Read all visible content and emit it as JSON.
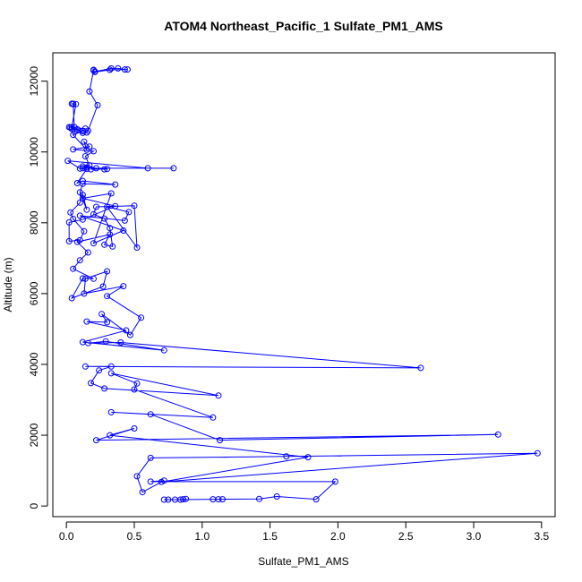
{
  "colors": {
    "series": "#0000ff",
    "axis": "#000000",
    "background": "#ffffff"
  },
  "chart_data": {
    "type": "line",
    "marker": "open-circle",
    "title": "ATOM4 Northeast_Pacific_1 Sulfate_PM1_AMS",
    "xlabel": "Sulfate_PM1_AMS",
    "ylabel": "Altitude (m)",
    "xlim": [
      -0.1,
      3.6
    ],
    "ylim": [
      -300,
      12800
    ],
    "xticks": [
      0,
      0.5,
      1,
      1.5,
      2,
      2.5,
      3,
      3.5
    ],
    "xtick_labels": [
      "0.0",
      "0.5",
      "1.0",
      "1.5",
      "2.0",
      "2.5",
      "3.0",
      "3.5"
    ],
    "yticks": [
      0,
      2000,
      4000,
      6000,
      8000,
      10000,
      12000
    ],
    "ytick_labels": [
      "0",
      "2000",
      "4000",
      "6000",
      "8000",
      "10000",
      "12000"
    ],
    "grid": false,
    "legend": "none",
    "series": [
      {
        "x": [
          0.72,
          0.75,
          0.8,
          0.86,
          0.88,
          0.84,
          1.08,
          1.12,
          1.15,
          1.42,
          1.55,
          1.84,
          1.98,
          0.62,
          0.72,
          0.56,
          0.52,
          0.62,
          1.62,
          3.47,
          0.7,
          1.78,
          0.32,
          0.5,
          0.22,
          3.18,
          1.13,
          0.62,
          0.33,
          1.08,
          0.5,
          0.52,
          0.33,
          1.12,
          0.28,
          0.18,
          0.24,
          0.33,
          0.14,
          2.61,
          0.4,
          0.16,
          0.29,
          0.72,
          0.12,
          0.44,
          0.15,
          0.3,
          0.26,
          0.47,
          0.55,
          0.3,
          0.42,
          0.13,
          0.14,
          0.3,
          0.27,
          0.04,
          0.12,
          0.2,
          0.05,
          0.1,
          0.16,
          0.08,
          0.32,
          0.28,
          0.34,
          0.32,
          0.28,
          0.2,
          0.22,
          0.5,
          0.52,
          0.3,
          0.46,
          0.43,
          0.1,
          0.42,
          0.2,
          0.33,
          0.12,
          0.36,
          0.12,
          0.02,
          0.02,
          0.1,
          0.13,
          0.05,
          0.03,
          0.1,
          0.12,
          0.15,
          0.1,
          0.12,
          0.36,
          0.12,
          0.08,
          0.15,
          0.15,
          0.1,
          0.01,
          0.6,
          0.12,
          0.79,
          0.22,
          0.18,
          0.3,
          0.28,
          0.12,
          0.17,
          0.14,
          0.2,
          0.05,
          0.17,
          0.13,
          0.15,
          0.05,
          0.12,
          0.04,
          0.08,
          0.14,
          0.03,
          0.06,
          0.02,
          0.04,
          0.07,
          0.05,
          0.04,
          0.05,
          0.06,
          0.12,
          0.15,
          0.16,
          0.23,
          0.17,
          0.2,
          0.21,
          0.33,
          0.38,
          0.43,
          0.45,
          0.32,
          0.21,
          0.2
        ],
        "y": [
          180,
          180,
          180,
          190,
          200,
          180,
          190,
          190,
          190,
          200,
          270,
          190,
          690,
          690,
          720,
          390,
          840,
          1360,
          1400,
          1490,
          680,
          1380,
          2000,
          2190,
          1860,
          2020,
          1860,
          2590,
          2650,
          2500,
          3290,
          3460,
          3750,
          3120,
          3320,
          3470,
          3830,
          3940,
          3940,
          3900,
          4620,
          4600,
          4650,
          4400,
          4630,
          4960,
          5210,
          5190,
          5420,
          4830,
          5320,
          5930,
          6210,
          6000,
          6420,
          6630,
          6200,
          5870,
          6430,
          6420,
          6700,
          6940,
          7160,
          7460,
          7670,
          7380,
          7330,
          7850,
          8120,
          8240,
          8450,
          8480,
          7300,
          8450,
          8300,
          8060,
          8200,
          7780,
          7420,
          8830,
          8690,
          8470,
          8090,
          8010,
          7480,
          7510,
          7760,
          8110,
          8290,
          8570,
          8790,
          8370,
          8860,
          9100,
          9080,
          9180,
          9120,
          9520,
          9560,
          9530,
          9750,
          9540,
          9540,
          9540,
          9540,
          9510,
          9520,
          9510,
          9590,
          9620,
          9880,
          10020,
          10070,
          10150,
          10290,
          10060,
          10480,
          10590,
          10650,
          10640,
          10660,
          10690,
          10700,
          10700,
          10700,
          11350,
          11360,
          11360,
          11350,
          10580,
          10540,
          10550,
          10600,
          11320,
          11710,
          12300,
          12270,
          12360,
          12360,
          12330,
          12330,
          12320,
          12260,
          12320
        ]
      }
    ]
  }
}
